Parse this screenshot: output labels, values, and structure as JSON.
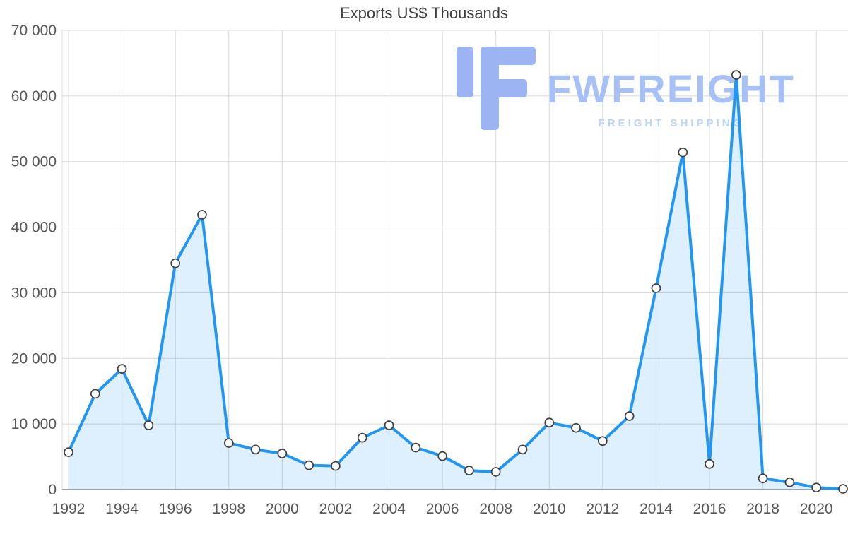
{
  "chart_data": {
    "type": "area",
    "title": "Exports US$ Thousands",
    "x": [
      1992,
      1993,
      1994,
      1995,
      1996,
      1997,
      1998,
      1999,
      2000,
      2001,
      2002,
      2003,
      2004,
      2005,
      2006,
      2007,
      2008,
      2009,
      2010,
      2011,
      2012,
      2013,
      2014,
      2015,
      2016,
      2017,
      2018,
      2019,
      2020,
      2021
    ],
    "values": [
      5700,
      14600,
      18400,
      9800,
      34500,
      41900,
      7100,
      6100,
      5500,
      3700,
      3600,
      7900,
      9800,
      6400,
      5100,
      2900,
      2700,
      6100,
      10200,
      9400,
      7400,
      11200,
      30700,
      51400,
      3900,
      63200,
      1700,
      1100,
      300,
      100
    ],
    "xlabel": "",
    "ylabel": "",
    "ylim": [
      0,
      70000
    ],
    "grid": true,
    "legend": false,
    "y_ticks": [
      0,
      10000,
      20000,
      30000,
      40000,
      50000,
      60000,
      70000
    ],
    "y_tick_labels": [
      "0",
      "10 000",
      "20 000",
      "30 000",
      "40 000",
      "50 000",
      "60 000",
      "70 000"
    ],
    "x_tick_labels": [
      "1992",
      "1994",
      "1996",
      "1998",
      "2000",
      "2002",
      "2004",
      "2006",
      "2008",
      "2010",
      "2012",
      "2014",
      "2016",
      "2018",
      "2020"
    ],
    "colors": {
      "line": "#2196f3",
      "area_opacity": 0.15,
      "grid": "#d8d8d8",
      "axis": "#8a8a8a",
      "tick_text": "#575757",
      "title_text": "#3d3d3d",
      "marker_fill": "#ffffff",
      "marker_stroke": "#3f3f3f"
    }
  },
  "watermark": {
    "brand": "FWFREIGHT",
    "tagline": "FREIGHT SHIPPING",
    "brand_color": "#a7c1f7",
    "tagline_color": "#bcd3fb",
    "icon_color": "#9db4f2"
  }
}
